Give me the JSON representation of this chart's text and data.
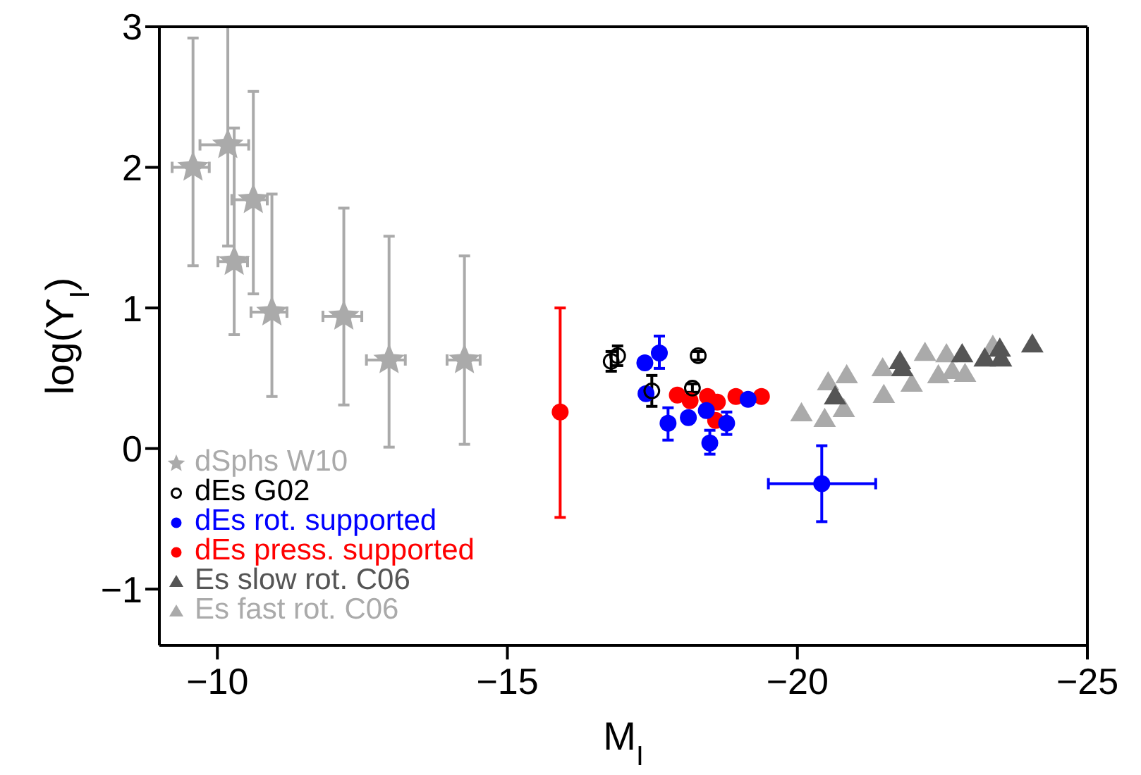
{
  "chart_data": {
    "type": "scatter",
    "xlabel": "M$_{I}$",
    "ylabel": "log(ϒ$_{I}$)",
    "xlim": [
      -9,
      -25
    ],
    "xticks": [
      -10,
      -15,
      -20,
      -25
    ],
    "ylim": [
      -1.4,
      3
    ],
    "yticks": [
      -1,
      0,
      1,
      2,
      3
    ],
    "legend": "bottom left",
    "series": [
      {
        "name": "dSphs W10",
        "color": "#aaaaaa",
        "marker": "star",
        "x": [
          -9.58,
          -10.18,
          -10.29,
          -10.62,
          -10.94,
          -12.18,
          -12.96,
          -14.26
        ],
        "values": [
          2.0,
          2.16,
          1.33,
          1.77,
          0.97,
          0.94,
          0.63,
          0.63
        ],
        "errors": [
          [
            1.3,
            2.92
          ],
          [
            1.44,
            3.0
          ],
          [
            0.81,
            2.28
          ],
          [
            1.1,
            2.54
          ],
          [
            0.37,
            1.81
          ],
          [
            0.31,
            1.71
          ],
          [
            0.01,
            1.51
          ],
          [
            0.03,
            1.37
          ]
        ],
        "xerrors": [
          [
            -9.86,
            -9.22
          ],
          [
            -10.54,
            -9.7
          ],
          [
            -10.52,
            -10.01
          ],
          [
            -10.86,
            -10.25
          ],
          [
            -11.2,
            -10.58
          ],
          [
            -12.49,
            -11.82
          ],
          [
            -13.24,
            -12.57
          ],
          [
            -14.53,
            -13.96
          ]
        ]
      },
      {
        "name": "dEs G02",
        "color": "#000000",
        "marker": "open circle",
        "x": [
          -16.79,
          -16.9,
          -18.29,
          -18.19,
          -17.49
        ],
        "values": [
          0.62,
          0.66,
          0.66,
          0.43,
          0.41
        ],
        "errors": [
          [
            0.55,
            0.69
          ],
          [
            0.59,
            0.73
          ],
          [
            0.63,
            0.69
          ],
          [
            0.4,
            0.46
          ],
          [
            0.3,
            0.52
          ]
        ]
      },
      {
        "name": "dEs rot. supported",
        "color": "#0000ff",
        "marker": "circle",
        "x": [
          -17.37,
          -17.62,
          -17.39,
          -17.77,
          -18.12,
          -18.43,
          -18.49,
          -18.78,
          -19.15,
          -20.42
        ],
        "values": [
          0.61,
          0.68,
          0.39,
          0.18,
          0.22,
          0.27,
          0.04,
          0.18,
          0.35,
          -0.25
        ],
        "errors": [
          null,
          [
            0.57,
            0.8
          ],
          null,
          [
            0.06,
            0.29
          ],
          null,
          null,
          [
            -0.04,
            0.13
          ],
          [
            0.1,
            0.26
          ],
          null,
          [
            -0.52,
            0.02
          ]
        ],
        "xerrors": [
          null,
          null,
          null,
          null,
          null,
          null,
          null,
          null,
          null,
          [
            -21.35,
            -19.5
          ]
        ]
      },
      {
        "name": "dEs press. supported",
        "color": "#ff0000",
        "marker": "circle",
        "x": [
          -15.91,
          -17.93,
          -18.15,
          -18.45,
          -18.62,
          -18.59,
          -18.94,
          -19.38
        ],
        "values": [
          0.26,
          0.38,
          0.34,
          0.37,
          0.33,
          0.2,
          0.37,
          0.37
        ],
        "errors": [
          [
            -0.49,
            1.0
          ],
          null,
          null,
          null,
          null,
          null,
          null,
          null
        ]
      },
      {
        "name": "Es slow rot. C06",
        "color": "#555555",
        "marker": "triangle",
        "x": [
          -21.77,
          -21.81,
          -20.65,
          -22.84,
          -23.23,
          -23.49,
          -23.51,
          -24.05
        ],
        "values": [
          0.62,
          0.57,
          0.37,
          0.67,
          0.64,
          0.71,
          0.64,
          0.74
        ]
      },
      {
        "name": "Es fast rot. C06",
        "color": "#aaaaaa",
        "marker": "triangle",
        "x": [
          -20.07,
          -20.47,
          -20.53,
          -20.85,
          -20.8,
          -21.49,
          -21.47,
          -21.97,
          -22.2,
          -22.43,
          -22.57,
          -22.67,
          -22.89,
          -23.37
        ],
        "values": [
          0.25,
          0.21,
          0.47,
          0.52,
          0.28,
          0.38,
          0.57,
          0.46,
          0.68,
          0.52,
          0.67,
          0.55,
          0.53,
          0.73
        ]
      }
    ]
  }
}
